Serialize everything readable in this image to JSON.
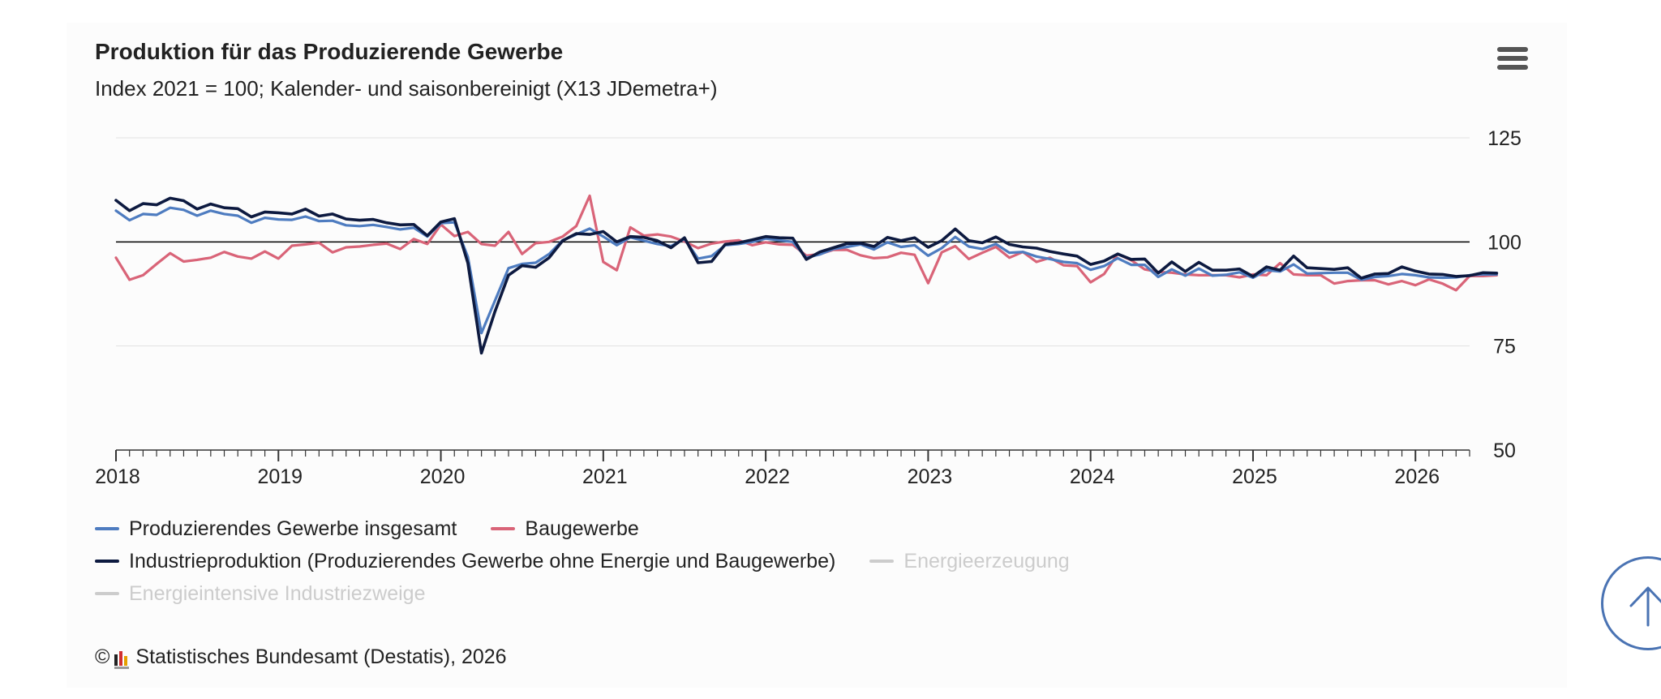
{
  "header": {
    "title": "Produktion für das Produzierende Gewerbe",
    "subtitle": "Index 2021 = 100; Kalender- und saisonbereinigt (X13 JDemetra+)",
    "menu_icon": "hamburger-menu-icon"
  },
  "credits": {
    "copyright": "©",
    "logo_icon": "destatis-logo-icon",
    "text": "Statistisches Bundesamt (Destatis), 2026"
  },
  "scroll_top": {
    "icon": "arrow-up-icon"
  },
  "colors": {
    "series_blue": "#4e7cc0",
    "series_pink": "#d96478",
    "series_navy": "#0d1a40",
    "series_hidden": "#cccccc",
    "grid": "#e2e2e2",
    "reference_line": "#000000",
    "scroll_button": "#4a73b3"
  },
  "chart_data": {
    "type": "line",
    "title": "Produktion für das Produzierende Gewerbe",
    "subtitle": "Index 2021 = 100; Kalender- und saisonbereinigt (X13 JDemetra+)",
    "x_start": "2018-01",
    "x_end": "2026-05",
    "x_ticks": [
      "2018",
      "2019",
      "2020",
      "2021",
      "2022",
      "2023",
      "2024",
      "2025",
      "2026"
    ],
    "y_ticks": [
      50,
      75,
      100,
      125
    ],
    "ylim": [
      50,
      125
    ],
    "y_axis_side": "right",
    "reference_line": 100,
    "grid": true,
    "legend_position": "bottom",
    "series": [
      {
        "name": "Produzierendes Gewerbe insgesamt",
        "color": "#4e7cc0",
        "visible": true,
        "values": [
          107.5,
          105.2,
          106.7,
          106.5,
          108.2,
          107.7,
          106.3,
          107.5,
          106.7,
          106.3,
          104.6,
          105.8,
          105.4,
          105.3,
          106.1,
          105.0,
          105.1,
          104.0,
          103.8,
          104.1,
          103.6,
          103.0,
          103.4,
          101.3,
          104.5,
          104.7,
          96.4,
          78.1,
          85.9,
          93.7,
          94.7,
          95.0,
          97.1,
          100.4,
          101.8,
          103.2,
          101.3,
          99.2,
          101.1,
          100.3,
          99.5,
          99.0,
          100.7,
          96.0,
          96.6,
          99.2,
          99.5,
          100.0,
          100.8,
          100.4,
          100.0,
          96.2,
          97.0,
          98.3,
          98.8,
          99.4,
          98.2,
          99.9,
          98.8,
          99.2,
          96.7,
          98.5,
          101.2,
          98.9,
          98.3,
          99.5,
          97.4,
          97.6,
          96.5,
          95.9,
          95.2,
          94.9,
          93.3,
          94.2,
          96.1,
          94.5,
          94.5,
          91.6,
          93.4,
          91.9,
          93.6,
          91.9,
          92.1,
          92.7,
          91.4,
          93.2,
          92.9,
          94.6,
          92.4,
          92.5,
          92.6,
          92.6,
          90.9,
          91.6,
          91.8,
          92.3,
          92.0,
          91.5,
          91.4,
          91.5,
          92.0,
          92.2,
          92.2
        ]
      },
      {
        "name": "Baugewerbe",
        "color": "#d96478",
        "visible": true,
        "values": [
          96.2,
          90.9,
          92.0,
          94.7,
          97.3,
          95.3,
          95.7,
          96.2,
          97.6,
          96.5,
          96.0,
          97.7,
          96.0,
          99.1,
          99.4,
          99.8,
          97.5,
          98.7,
          98.9,
          99.3,
          99.6,
          98.3,
          100.7,
          99.5,
          104.2,
          101.4,
          102.4,
          99.5,
          99.1,
          102.4,
          97.1,
          99.7,
          100.0,
          101.3,
          103.8,
          111.1,
          95.2,
          93.2,
          103.5,
          101.5,
          101.8,
          101.3,
          100.1,
          98.5,
          99.6,
          100.1,
          100.4,
          99.2,
          99.9,
          99.4,
          99.3,
          96.7,
          97.1,
          98.1,
          98.1,
          96.8,
          96.1,
          96.3,
          97.4,
          96.9,
          90.1,
          97.5,
          99.0,
          95.9,
          97.4,
          98.8,
          96.2,
          97.6,
          95.2,
          96.2,
          94.4,
          94.2,
          90.3,
          92.3,
          97.1,
          95.6,
          93.4,
          92.8,
          92.6,
          92.2,
          92.0,
          92.0,
          92.0,
          91.5,
          92.2,
          92.0,
          94.9,
          92.2,
          92.0,
          92.0,
          90.0,
          90.6,
          90.8,
          90.8,
          89.8,
          90.6,
          89.6,
          91.0,
          90.0,
          88.4,
          91.8,
          91.8,
          92.0
        ]
      },
      {
        "name": "Industrieproduktion (Produzierendes Gewerbe ohne Energie und Baugewerbe)",
        "color": "#0d1a40",
        "visible": true,
        "values": [
          110.0,
          107.5,
          109.2,
          108.9,
          110.5,
          109.9,
          107.9,
          109.1,
          108.2,
          108.0,
          106.0,
          107.2,
          107.0,
          106.7,
          107.9,
          106.2,
          106.7,
          105.5,
          105.2,
          105.4,
          104.6,
          104.1,
          104.2,
          101.5,
          104.8,
          105.6,
          94.9,
          73.3,
          83.3,
          92.0,
          94.3,
          93.9,
          96.2,
          100.3,
          102.0,
          101.8,
          102.5,
          100.0,
          101.3,
          101.1,
          100.3,
          98.6,
          101.0,
          95.0,
          95.3,
          99.4,
          99.8,
          100.5,
          101.3,
          101.0,
          100.9,
          95.8,
          97.6,
          98.6,
          99.6,
          99.7,
          98.9,
          101.1,
          100.3,
          101.0,
          98.7,
          100.3,
          103.1,
          100.3,
          99.8,
          101.2,
          99.4,
          98.8,
          98.5,
          97.7,
          97.1,
          96.6,
          94.6,
          95.4,
          97.1,
          95.8,
          95.9,
          92.5,
          95.2,
          92.9,
          95.1,
          93.2,
          93.2,
          93.5,
          91.7,
          94.0,
          93.2,
          96.6,
          93.8,
          93.6,
          93.4,
          93.8,
          91.3,
          92.3,
          92.4,
          94.0,
          93.0,
          92.3,
          92.2,
          91.7,
          91.9,
          92.6,
          92.5
        ]
      },
      {
        "name": "Energieerzeugung",
        "color": "#cccccc",
        "visible": false,
        "values": []
      },
      {
        "name": "Energieintensive Industriezweige",
        "color": "#cccccc",
        "visible": false,
        "values": []
      }
    ]
  }
}
